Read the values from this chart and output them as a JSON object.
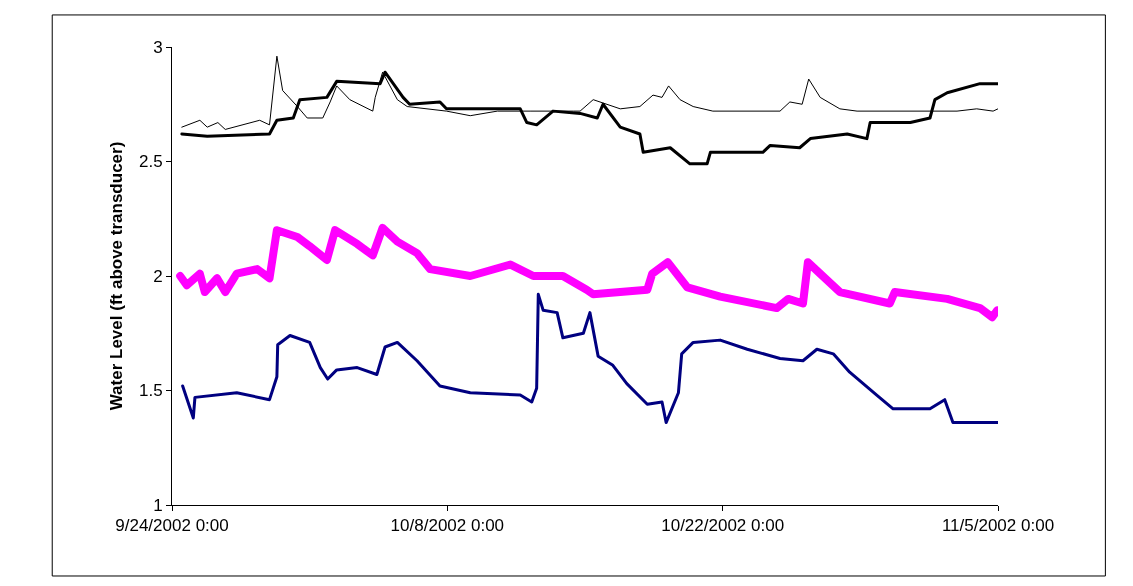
{
  "chart_data": {
    "type": "line",
    "ylabel": "Water Level (ft above transducer)",
    "xlim": [
      "2002-09-24",
      "2002-11-05"
    ],
    "xticks": [
      {
        "value": "2002-09-24",
        "label": "9/24/2002 0:00"
      },
      {
        "value": "2002-10-08",
        "label": "10/8/2002 0:00"
      },
      {
        "value": "2002-10-22",
        "label": "10/22/2002 0:00"
      },
      {
        "value": "2002-11-05",
        "label": "11/5/2002 0:00"
      }
    ],
    "ylim": [
      1,
      3
    ],
    "yticks": [
      1,
      1.5,
      2,
      2.5,
      3
    ],
    "marker": "none",
    "line_style": "solid",
    "series": [
      {
        "color": "#000000",
        "x": [
          "2002-09-24T12:00",
          "2002-09-25T10:00",
          "2002-09-25T19:00",
          "2002-09-26T08:00",
          "2002-09-26T17:00",
          "2002-09-28T11:00",
          "2002-09-28T23:00",
          "2002-09-29T08:00",
          "2002-09-29T15:00",
          "2002-09-30T09:00",
          "2002-09-30T21:00",
          "2002-10-01T16:00",
          "2002-10-02T01:00",
          "2002-10-02T09:00",
          "2002-10-03T01:00",
          "2002-10-04T05:00",
          "2002-10-04T08:00",
          "2002-10-04T17:00",
          "2002-10-05T11:00",
          "2002-10-05T23:00",
          "2002-10-07T23:00",
          "2002-10-09T04:00",
          "2002-10-10T13:00",
          "2002-10-12T05:00",
          "2002-10-14T10:00",
          "2002-10-14T18:00",
          "2002-10-15T10:00",
          "2002-10-16T19:00",
          "2002-10-17T19:00",
          "2002-10-18T11:00",
          "2002-10-18T22:00",
          "2002-10-19T06:00",
          "2002-10-19T20:00",
          "2002-10-20T12:00",
          "2002-10-21T12:00",
          "2002-10-24T22:00",
          "2002-10-25T10:00",
          "2002-10-26T01:00",
          "2002-10-26T09:00",
          "2002-10-26T23:00",
          "2002-10-27T23:00",
          "2002-10-28T20:00",
          "2002-11-01T13:00",
          "2002-11-02T22:00",
          "2002-11-03T22:00",
          "2002-11-04T18:00",
          "2002-11-05T00:00"
        ],
        "values": [
          2.65,
          2.68,
          2.65,
          2.67,
          2.64,
          2.68,
          2.66,
          2.96,
          2.81,
          2.74,
          2.69,
          2.69,
          2.76,
          2.83,
          2.77,
          2.72,
          2.78,
          2.89,
          2.77,
          2.74,
          2.72,
          2.7,
          2.72,
          2.72,
          2.72,
          2.72,
          2.77,
          2.73,
          2.74,
          2.79,
          2.78,
          2.83,
          2.77,
          2.74,
          2.72,
          2.72,
          2.76,
          2.75,
          2.86,
          2.78,
          2.73,
          2.72,
          2.72,
          2.72,
          2.73,
          2.72,
          2.73
        ]
      },
      {
        "color": "#000000",
        "x": [
          "2002-09-24T12:00",
          "2002-09-25T19:00",
          "2002-09-28T23:00",
          "2002-09-29T08:00",
          "2002-09-30T04:00",
          "2002-09-30T12:00",
          "2002-10-01T21:00",
          "2002-10-02T09:00",
          "2002-10-04T14:00",
          "2002-10-04T20:00",
          "2002-10-05T18:00",
          "2002-10-06T02:00",
          "2002-10-07T15:00",
          "2002-10-07T23:00",
          "2002-10-11T17:00",
          "2002-10-12T01:00",
          "2002-10-12T13:00",
          "2002-10-13T09:00",
          "2002-10-14T18:00",
          "2002-10-15T15:00",
          "2002-10-15T22:00",
          "2002-10-16T19:00",
          "2002-10-17T19:00",
          "2002-10-17T23:00",
          "2002-10-19T08:00",
          "2002-10-20T08:00",
          "2002-10-21T05:00",
          "2002-10-21T09:00",
          "2002-10-24T01:00",
          "2002-10-24T10:00",
          "2002-10-25T22:00",
          "2002-10-26T11:00",
          "2002-10-28T08:00",
          "2002-10-29T08:00",
          "2002-10-29T12:00",
          "2002-10-31T13:00",
          "2002-11-01T13:00",
          "2002-11-01T19:00",
          "2002-11-02T10:00",
          "2002-11-04T02:00",
          "2002-11-05T00:00"
        ],
        "values": [
          2.62,
          2.61,
          2.62,
          2.68,
          2.69,
          2.77,
          2.78,
          2.85,
          2.84,
          2.89,
          2.78,
          2.75,
          2.76,
          2.73,
          2.73,
          2.67,
          2.66,
          2.72,
          2.71,
          2.69,
          2.75,
          2.65,
          2.62,
          2.54,
          2.56,
          2.49,
          2.49,
          2.54,
          2.54,
          2.57,
          2.56,
          2.6,
          2.62,
          2.6,
          2.67,
          2.67,
          2.69,
          2.77,
          2.8,
          2.84,
          2.84
        ]
      },
      {
        "color": "#ff00ff",
        "x": [
          "2002-09-24T10:00",
          "2002-09-24T18:00",
          "2002-09-25T10:00",
          "2002-09-25T16:00",
          "2002-09-26T07:00",
          "2002-09-26T17:00",
          "2002-09-27T07:00",
          "2002-09-28T08:00",
          "2002-09-28T23:00",
          "2002-09-29T08:00",
          "2002-09-30T09:00",
          "2002-10-01T00:00",
          "2002-10-01T21:00",
          "2002-10-02T07:00",
          "2002-10-03T10:00",
          "2002-10-04T05:00",
          "2002-10-04T17:00",
          "2002-10-05T11:00",
          "2002-10-06T11:00",
          "2002-10-07T03:00",
          "2002-10-09T04:00",
          "2002-10-11T05:00",
          "2002-10-12T09:00",
          "2002-10-13T21:00",
          "2002-10-15T02:00",
          "2002-10-15T10:00",
          "2002-10-18T04:00",
          "2002-10-18T10:00",
          "2002-10-19T05:00",
          "2002-10-20T05:00",
          "2002-10-21T21:00",
          "2002-10-24T18:00",
          "2002-10-25T08:00",
          "2002-10-26T02:00",
          "2002-10-26T08:00",
          "2002-10-27T23:00",
          "2002-10-30T12:00",
          "2002-10-30T18:00",
          "2002-11-02T10:00",
          "2002-11-04T02:00",
          "2002-11-04T17:00",
          "2002-11-04T23:00"
        ],
        "values": [
          2.0,
          1.96,
          2.01,
          1.93,
          1.99,
          1.93,
          2.01,
          2.03,
          1.99,
          2.2,
          2.17,
          2.13,
          2.07,
          2.2,
          2.14,
          2.09,
          2.21,
          2.15,
          2.1,
          2.03,
          2.0,
          2.05,
          2.0,
          2.0,
          1.94,
          1.92,
          1.94,
          2.01,
          2.06,
          1.95,
          1.91,
          1.86,
          1.9,
          1.88,
          2.06,
          1.93,
          1.88,
          1.93,
          1.9,
          1.86,
          1.82,
          1.85
        ]
      },
      {
        "color": "#000080",
        "x": [
          "2002-09-24T13:00",
          "2002-09-25T02:00",
          "2002-09-25T04:00",
          "2002-09-27T07:00",
          "2002-09-28T23:00",
          "2002-09-29T08:00",
          "2002-09-29T09:00",
          "2002-09-30T00:00",
          "2002-10-01T00:00",
          "2002-10-01T13:00",
          "2002-10-01T22:00",
          "2002-10-02T09:00",
          "2002-10-03T10:00",
          "2002-10-04T10:00",
          "2002-10-04T20:00",
          "2002-10-05T11:00",
          "2002-10-06T11:00",
          "2002-10-07T15:00",
          "2002-10-09T04:00",
          "2002-10-11T17:00",
          "2002-10-12T07:00",
          "2002-10-12T13:00",
          "2002-10-12T15:00",
          "2002-10-12T21:00",
          "2002-10-13T14:00",
          "2002-10-13T21:00",
          "2002-10-14T22:00",
          "2002-10-15T06:00",
          "2002-10-15T16:00",
          "2002-10-16T10:00",
          "2002-10-17T03:00",
          "2002-10-18T04:00",
          "2002-10-18T22:00",
          "2002-10-19T03:00",
          "2002-10-19T18:00",
          "2002-10-19T22:00",
          "2002-10-20T12:00",
          "2002-10-21T21:00",
          "2002-10-23T06:00",
          "2002-10-24T22:00",
          "2002-10-26T02:00",
          "2002-10-26T19:00",
          "2002-10-27T15:00",
          "2002-10-28T11:00",
          "2002-10-29T20:00",
          "2002-10-30T16:00",
          "2002-11-01T13:00",
          "2002-11-02T07:00",
          "2002-11-02T17:00",
          "2002-11-05T00:00"
        ],
        "values": [
          1.52,
          1.38,
          1.47,
          1.49,
          1.46,
          1.56,
          1.7,
          1.74,
          1.71,
          1.6,
          1.55,
          1.59,
          1.6,
          1.57,
          1.69,
          1.71,
          1.63,
          1.52,
          1.49,
          1.48,
          1.45,
          1.51,
          1.92,
          1.85,
          1.84,
          1.73,
          1.75,
          1.84,
          1.65,
          1.61,
          1.53,
          1.44,
          1.45,
          1.36,
          1.49,
          1.66,
          1.71,
          1.72,
          1.68,
          1.64,
          1.63,
          1.68,
          1.66,
          1.58,
          1.48,
          1.42,
          1.42,
          1.46,
          1.36,
          1.36
        ]
      }
    ]
  }
}
